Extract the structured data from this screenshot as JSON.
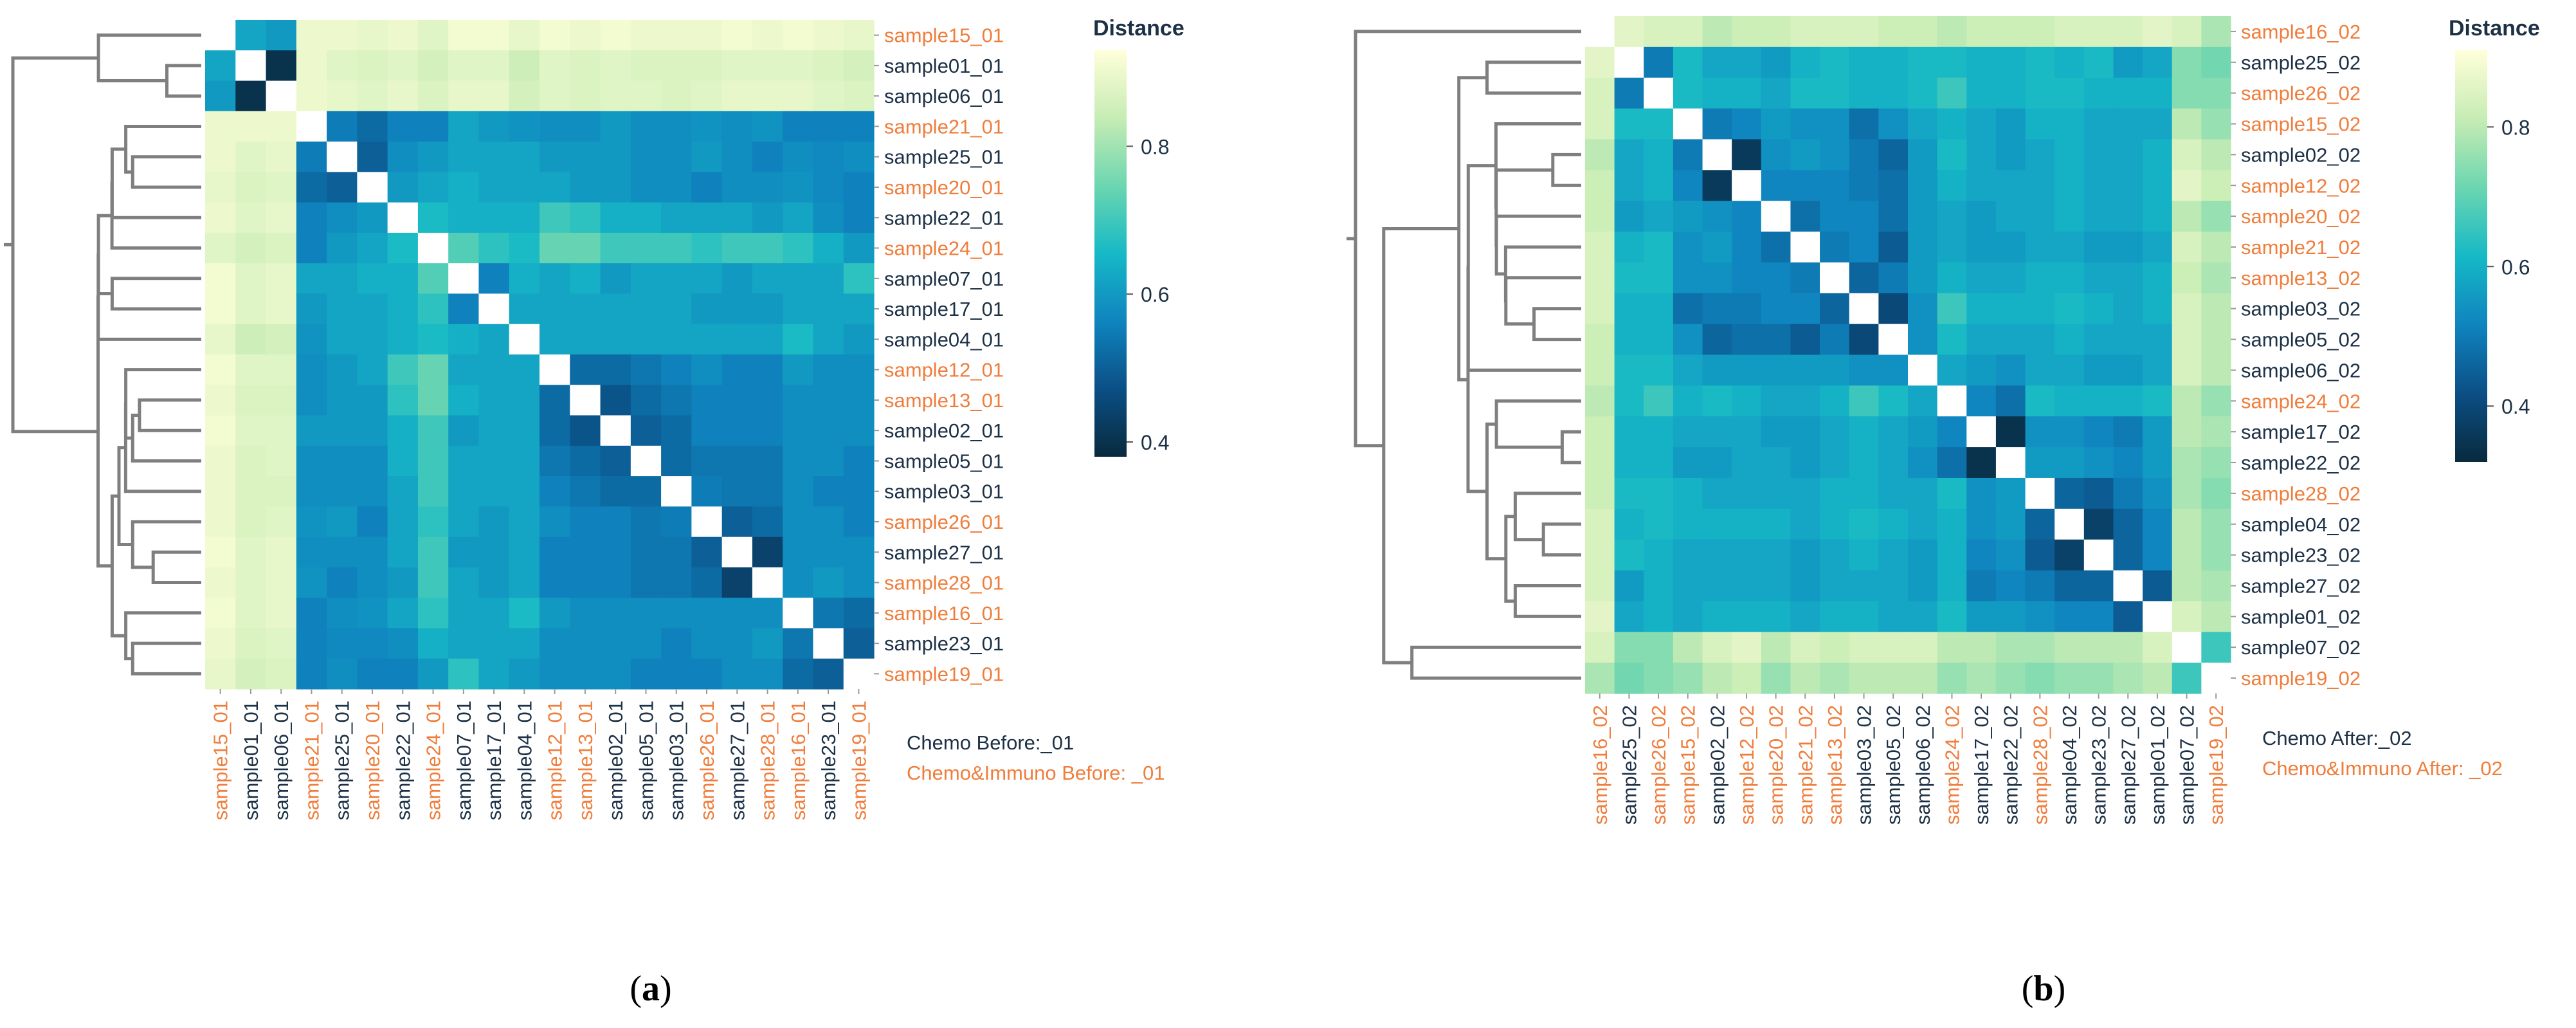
{
  "colors": {
    "group_chemo": "#1d3146",
    "group_chemo_immuno": "#ef7d3c",
    "diagonal": "#ffffff",
    "dendrogram": "#7f7f7f",
    "colorscale": [
      "#082a3e",
      "#0b4f85",
      "#0f84bf",
      "#16b9c6",
      "#6cd6b0",
      "#c7ecb4",
      "#ffffd9"
    ]
  },
  "chart_data": [
    {
      "type": "heatmap",
      "panel_label": "(a)",
      "panel_letter": "a",
      "legend_title": "Distance",
      "legend_ticks": [
        0.4,
        0.6,
        0.8
      ],
      "value_range": [
        0.38,
        0.93
      ],
      "group_legend": [
        "Chemo Before:_01",
        "Chemo&Immuno Before: _01"
      ],
      "labels": [
        "sample15_01",
        "sample01_01",
        "sample06_01",
        "sample21_01",
        "sample25_01",
        "sample20_01",
        "sample22_01",
        "sample24_01",
        "sample07_01",
        "sample17_01",
        "sample04_01",
        "sample12_01",
        "sample13_01",
        "sample02_01",
        "sample05_01",
        "sample03_01",
        "sample26_01",
        "sample27_01",
        "sample28_01",
        "sample16_01",
        "sample23_01",
        "sample19_01"
      ],
      "label_group": [
        1,
        0,
        0,
        1,
        0,
        1,
        0,
        1,
        0,
        0,
        0,
        1,
        1,
        0,
        0,
        0,
        1,
        0,
        1,
        1,
        0,
        1
      ],
      "block_sizes": [
        3,
        19
      ],
      "values": [
        [
          null,
          0.62,
          0.6,
          0.9,
          0.9,
          0.89,
          0.9,
          0.88,
          0.91,
          0.91,
          0.89,
          0.91,
          0.9,
          0.91,
          0.9,
          0.9,
          0.9,
          0.91,
          0.9,
          0.91,
          0.9,
          0.89
        ],
        [
          0.62,
          null,
          0.4,
          0.9,
          0.88,
          0.87,
          0.88,
          0.86,
          0.88,
          0.88,
          0.85,
          0.88,
          0.87,
          0.88,
          0.87,
          0.87,
          0.87,
          0.88,
          0.88,
          0.88,
          0.87,
          0.86
        ],
        [
          0.6,
          0.4,
          null,
          0.9,
          0.89,
          0.88,
          0.89,
          0.87,
          0.89,
          0.89,
          0.86,
          0.88,
          0.87,
          0.88,
          0.88,
          0.87,
          0.88,
          0.89,
          0.89,
          0.89,
          0.88,
          0.87
        ],
        [
          0.9,
          0.9,
          0.9,
          null,
          0.55,
          0.52,
          0.56,
          0.56,
          0.62,
          0.6,
          0.59,
          0.58,
          0.58,
          0.6,
          0.58,
          0.58,
          0.59,
          0.58,
          0.59,
          0.56,
          0.56,
          0.56
        ],
        [
          0.9,
          0.88,
          0.89,
          0.55,
          null,
          0.5,
          0.58,
          0.6,
          0.62,
          0.62,
          0.62,
          0.6,
          0.6,
          0.6,
          0.58,
          0.58,
          0.6,
          0.58,
          0.56,
          0.58,
          0.57,
          0.58
        ],
        [
          0.89,
          0.87,
          0.88,
          0.52,
          0.5,
          null,
          0.6,
          0.62,
          0.64,
          0.62,
          0.62,
          0.62,
          0.6,
          0.6,
          0.58,
          0.58,
          0.56,
          0.58,
          0.58,
          0.59,
          0.57,
          0.56
        ],
        [
          0.9,
          0.88,
          0.89,
          0.56,
          0.58,
          0.6,
          null,
          0.66,
          0.64,
          0.64,
          0.64,
          0.7,
          0.68,
          0.64,
          0.64,
          0.62,
          0.62,
          0.62,
          0.6,
          0.62,
          0.58,
          0.56
        ],
        [
          0.88,
          0.86,
          0.87,
          0.56,
          0.6,
          0.62,
          0.66,
          null,
          0.72,
          0.68,
          0.66,
          0.74,
          0.74,
          0.7,
          0.7,
          0.7,
          0.68,
          0.7,
          0.7,
          0.68,
          0.64,
          0.6
        ],
        [
          0.91,
          0.88,
          0.89,
          0.62,
          0.62,
          0.64,
          0.64,
          0.72,
          null,
          0.56,
          0.64,
          0.62,
          0.64,
          0.6,
          0.62,
          0.62,
          0.62,
          0.6,
          0.62,
          0.62,
          0.62,
          0.68
        ],
        [
          0.91,
          0.88,
          0.89,
          0.6,
          0.62,
          0.62,
          0.64,
          0.68,
          0.56,
          null,
          0.62,
          0.62,
          0.62,
          0.62,
          0.62,
          0.62,
          0.6,
          0.6,
          0.6,
          0.62,
          0.62,
          0.62
        ],
        [
          0.89,
          0.85,
          0.86,
          0.59,
          0.62,
          0.62,
          0.64,
          0.66,
          0.64,
          0.62,
          null,
          0.62,
          0.62,
          0.62,
          0.62,
          0.62,
          0.62,
          0.62,
          0.62,
          0.66,
          0.62,
          0.6
        ],
        [
          0.91,
          0.88,
          0.88,
          0.58,
          0.6,
          0.62,
          0.7,
          0.74,
          0.62,
          0.62,
          0.62,
          null,
          0.52,
          0.52,
          0.54,
          0.56,
          0.58,
          0.56,
          0.56,
          0.6,
          0.58,
          0.58
        ],
        [
          0.9,
          0.87,
          0.87,
          0.58,
          0.6,
          0.6,
          0.68,
          0.74,
          0.64,
          0.62,
          0.62,
          0.52,
          null,
          0.48,
          0.52,
          0.54,
          0.56,
          0.56,
          0.56,
          0.58,
          0.58,
          0.58
        ],
        [
          0.91,
          0.88,
          0.88,
          0.6,
          0.6,
          0.6,
          0.64,
          0.7,
          0.6,
          0.62,
          0.62,
          0.52,
          0.48,
          null,
          0.5,
          0.52,
          0.56,
          0.56,
          0.56,
          0.58,
          0.58,
          0.58
        ],
        [
          0.9,
          0.87,
          0.88,
          0.58,
          0.58,
          0.58,
          0.64,
          0.7,
          0.62,
          0.62,
          0.62,
          0.54,
          0.52,
          0.5,
          null,
          0.52,
          0.54,
          0.54,
          0.54,
          0.58,
          0.58,
          0.56
        ],
        [
          0.9,
          0.87,
          0.87,
          0.58,
          0.58,
          0.58,
          0.62,
          0.7,
          0.62,
          0.62,
          0.62,
          0.56,
          0.54,
          0.52,
          0.52,
          null,
          0.55,
          0.54,
          0.54,
          0.58,
          0.56,
          0.56
        ],
        [
          0.9,
          0.87,
          0.88,
          0.59,
          0.6,
          0.56,
          0.62,
          0.68,
          0.62,
          0.6,
          0.62,
          0.58,
          0.56,
          0.56,
          0.54,
          0.55,
          null,
          0.5,
          0.52,
          0.58,
          0.58,
          0.56
        ],
        [
          0.91,
          0.88,
          0.89,
          0.58,
          0.58,
          0.58,
          0.62,
          0.7,
          0.6,
          0.6,
          0.62,
          0.56,
          0.56,
          0.56,
          0.54,
          0.54,
          0.5,
          null,
          0.44,
          0.58,
          0.58,
          0.58
        ],
        [
          0.9,
          0.88,
          0.89,
          0.59,
          0.56,
          0.58,
          0.6,
          0.7,
          0.62,
          0.6,
          0.62,
          0.56,
          0.56,
          0.56,
          0.54,
          0.54,
          0.52,
          0.44,
          null,
          0.58,
          0.6,
          0.58
        ],
        [
          0.91,
          0.88,
          0.89,
          0.56,
          0.58,
          0.59,
          0.62,
          0.68,
          0.62,
          0.62,
          0.66,
          0.6,
          0.58,
          0.58,
          0.58,
          0.58,
          0.58,
          0.58,
          0.58,
          null,
          0.54,
          0.52
        ],
        [
          0.9,
          0.87,
          0.88,
          0.56,
          0.57,
          0.57,
          0.58,
          0.64,
          0.62,
          0.62,
          0.62,
          0.58,
          0.58,
          0.58,
          0.58,
          0.56,
          0.58,
          0.58,
          0.6,
          0.54,
          null,
          0.5
        ],
        [
          0.89,
          0.86,
          0.87,
          0.56,
          0.58,
          0.56,
          0.56,
          0.6,
          0.68,
          0.62,
          0.6,
          0.58,
          0.58,
          0.58,
          0.56,
          0.56,
          0.56,
          0.58,
          0.58,
          0.52,
          0.5,
          null
        ]
      ]
    },
    {
      "type": "heatmap",
      "panel_label": "(b)",
      "panel_letter": "b",
      "legend_title": "Distance",
      "legend_ticks": [
        0.4,
        0.6,
        0.8
      ],
      "value_range": [
        0.32,
        0.91
      ],
      "group_legend": [
        "Chemo After:_02",
        "Chemo&Immuno After: _02"
      ],
      "labels": [
        "sample16_02",
        "sample25_02",
        "sample26_02",
        "sample15_02",
        "sample02_02",
        "sample12_02",
        "sample20_02",
        "sample21_02",
        "sample13_02",
        "sample03_02",
        "sample05_02",
        "sample06_02",
        "sample24_02",
        "sample17_02",
        "sample22_02",
        "sample28_02",
        "sample04_02",
        "sample23_02",
        "sample27_02",
        "sample01_02",
        "sample07_02",
        "sample19_02"
      ],
      "label_group": [
        1,
        0,
        1,
        1,
        0,
        1,
        1,
        1,
        1,
        0,
        0,
        0,
        1,
        0,
        0,
        1,
        0,
        0,
        0,
        0,
        0,
        1
      ],
      "block_sizes": [
        1,
        19,
        2
      ],
      "values": [
        [
          null,
          0.86,
          0.84,
          0.84,
          0.8,
          0.82,
          0.82,
          0.84,
          0.84,
          0.84,
          0.82,
          0.82,
          0.8,
          0.82,
          0.82,
          0.82,
          0.84,
          0.84,
          0.84,
          0.86,
          0.84,
          0.78
        ],
        [
          0.86,
          null,
          0.5,
          0.62,
          0.58,
          0.58,
          0.56,
          0.6,
          0.62,
          0.6,
          0.6,
          0.62,
          0.62,
          0.6,
          0.6,
          0.62,
          0.6,
          0.62,
          0.56,
          0.58,
          0.74,
          0.72
        ],
        [
          0.84,
          0.5,
          null,
          0.62,
          0.6,
          0.6,
          0.58,
          0.62,
          0.62,
          0.6,
          0.6,
          0.62,
          0.66,
          0.6,
          0.6,
          0.62,
          0.62,
          0.6,
          0.6,
          0.6,
          0.74,
          0.74
        ],
        [
          0.84,
          0.62,
          0.62,
          null,
          0.5,
          0.52,
          0.56,
          0.54,
          0.54,
          0.48,
          0.54,
          0.58,
          0.6,
          0.58,
          0.56,
          0.6,
          0.6,
          0.58,
          0.58,
          0.58,
          0.8,
          0.76
        ],
        [
          0.8,
          0.58,
          0.6,
          0.5,
          null,
          0.36,
          0.54,
          0.56,
          0.54,
          0.5,
          0.46,
          0.56,
          0.62,
          0.58,
          0.56,
          0.58,
          0.6,
          0.58,
          0.58,
          0.6,
          0.84,
          0.8
        ],
        [
          0.82,
          0.58,
          0.6,
          0.52,
          0.36,
          null,
          0.52,
          0.52,
          0.52,
          0.5,
          0.48,
          0.56,
          0.6,
          0.58,
          0.58,
          0.58,
          0.6,
          0.58,
          0.58,
          0.6,
          0.86,
          0.82
        ],
        [
          0.82,
          0.56,
          0.58,
          0.56,
          0.54,
          0.52,
          null,
          0.48,
          0.52,
          0.52,
          0.48,
          0.56,
          0.58,
          0.56,
          0.58,
          0.58,
          0.6,
          0.58,
          0.58,
          0.6,
          0.8,
          0.76
        ],
        [
          0.84,
          0.6,
          0.62,
          0.54,
          0.56,
          0.52,
          0.48,
          null,
          0.5,
          0.52,
          0.44,
          0.56,
          0.58,
          0.56,
          0.56,
          0.58,
          0.58,
          0.56,
          0.56,
          0.58,
          0.84,
          0.8
        ],
        [
          0.84,
          0.62,
          0.62,
          0.54,
          0.54,
          0.52,
          0.52,
          0.5,
          null,
          0.46,
          0.5,
          0.56,
          0.6,
          0.58,
          0.58,
          0.6,
          0.6,
          0.58,
          0.58,
          0.6,
          0.82,
          0.78
        ],
        [
          0.84,
          0.6,
          0.6,
          0.48,
          0.5,
          0.5,
          0.52,
          0.52,
          0.46,
          null,
          0.4,
          0.54,
          0.66,
          0.6,
          0.6,
          0.6,
          0.62,
          0.6,
          0.58,
          0.6,
          0.84,
          0.8
        ],
        [
          0.82,
          0.6,
          0.6,
          0.54,
          0.46,
          0.48,
          0.48,
          0.44,
          0.5,
          0.4,
          null,
          0.54,
          0.62,
          0.58,
          0.58,
          0.58,
          0.6,
          0.58,
          0.58,
          0.58,
          0.84,
          0.8
        ],
        [
          0.82,
          0.62,
          0.62,
          0.58,
          0.56,
          0.56,
          0.56,
          0.56,
          0.56,
          0.54,
          0.54,
          null,
          0.58,
          0.56,
          0.54,
          0.58,
          0.58,
          0.56,
          0.56,
          0.58,
          0.84,
          0.8
        ],
        [
          0.8,
          0.62,
          0.66,
          0.6,
          0.62,
          0.6,
          0.58,
          0.58,
          0.6,
          0.66,
          0.62,
          0.58,
          null,
          0.52,
          0.48,
          0.62,
          0.6,
          0.6,
          0.6,
          0.62,
          0.8,
          0.76
        ],
        [
          0.82,
          0.6,
          0.6,
          0.58,
          0.58,
          0.58,
          0.56,
          0.56,
          0.58,
          0.6,
          0.58,
          0.56,
          0.52,
          null,
          0.34,
          0.54,
          0.54,
          0.52,
          0.5,
          0.56,
          0.8,
          0.78
        ],
        [
          0.82,
          0.6,
          0.6,
          0.56,
          0.56,
          0.58,
          0.58,
          0.56,
          0.58,
          0.6,
          0.58,
          0.54,
          0.48,
          0.34,
          null,
          0.56,
          0.56,
          0.54,
          0.52,
          0.56,
          0.78,
          0.76
        ],
        [
          0.82,
          0.62,
          0.62,
          0.6,
          0.58,
          0.58,
          0.58,
          0.58,
          0.6,
          0.6,
          0.58,
          0.58,
          0.62,
          0.54,
          0.56,
          null,
          0.46,
          0.44,
          0.5,
          0.54,
          0.78,
          0.74
        ],
        [
          0.84,
          0.6,
          0.62,
          0.6,
          0.6,
          0.6,
          0.6,
          0.58,
          0.6,
          0.62,
          0.6,
          0.58,
          0.6,
          0.54,
          0.56,
          0.46,
          null,
          0.38,
          0.46,
          0.52,
          0.8,
          0.76
        ],
        [
          0.84,
          0.62,
          0.6,
          0.58,
          0.58,
          0.58,
          0.58,
          0.56,
          0.58,
          0.6,
          0.58,
          0.56,
          0.6,
          0.52,
          0.54,
          0.44,
          0.38,
          null,
          0.46,
          0.52,
          0.8,
          0.76
        ],
        [
          0.84,
          0.56,
          0.6,
          0.58,
          0.58,
          0.58,
          0.58,
          0.56,
          0.58,
          0.58,
          0.58,
          0.56,
          0.6,
          0.5,
          0.52,
          0.5,
          0.46,
          0.46,
          null,
          0.44,
          0.8,
          0.78
        ],
        [
          0.86,
          0.58,
          0.6,
          0.58,
          0.6,
          0.6,
          0.6,
          0.58,
          0.6,
          0.6,
          0.58,
          0.58,
          0.62,
          0.56,
          0.56,
          0.54,
          0.52,
          0.52,
          0.44,
          null,
          0.84,
          0.8
        ],
        [
          0.84,
          0.74,
          0.74,
          0.8,
          0.84,
          0.86,
          0.8,
          0.84,
          0.82,
          0.84,
          0.84,
          0.84,
          0.8,
          0.8,
          0.78,
          0.78,
          0.8,
          0.8,
          0.8,
          0.84,
          null,
          0.66
        ],
        [
          0.78,
          0.72,
          0.74,
          0.76,
          0.8,
          0.82,
          0.76,
          0.8,
          0.78,
          0.8,
          0.8,
          0.8,
          0.76,
          0.78,
          0.76,
          0.74,
          0.76,
          0.76,
          0.78,
          0.8,
          0.66,
          null
        ]
      ]
    }
  ]
}
